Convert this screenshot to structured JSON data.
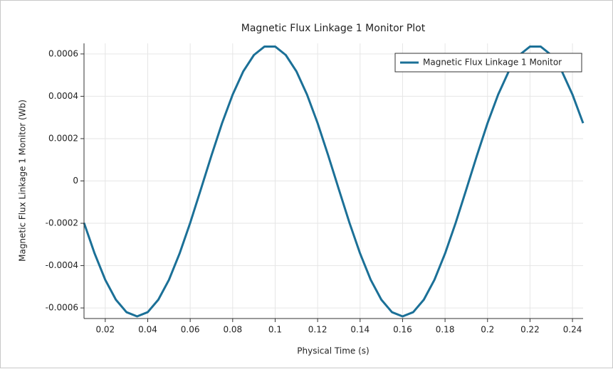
{
  "chart_data": {
    "type": "line",
    "title": "Magnetic Flux Linkage 1 Monitor Plot",
    "xlabel": "Physical Time (s)",
    "ylabel": "Magnetic Flux Linkage 1 Monitor (Wb)",
    "x": [
      0.01,
      0.015,
      0.02,
      0.025,
      0.03,
      0.035,
      0.04,
      0.045,
      0.05,
      0.055,
      0.06,
      0.065,
      0.07,
      0.075,
      0.08,
      0.085,
      0.09,
      0.095,
      0.1,
      0.105,
      0.11,
      0.115,
      0.12,
      0.125,
      0.13,
      0.135,
      0.14,
      0.145,
      0.15,
      0.155,
      0.16,
      0.165,
      0.17,
      0.175,
      0.18,
      0.185,
      0.19,
      0.195,
      0.2,
      0.205,
      0.21,
      0.215,
      0.22,
      0.225,
      0.23,
      0.235,
      0.24,
      0.245
    ],
    "series": [
      {
        "name": "Magnetic Flux Linkage 1 Monitor",
        "color": "#1b7097",
        "values": [
          -0.000198,
          -0.000343,
          -0.000467,
          -0.000561,
          -0.00062,
          -0.00064,
          -0.00062,
          -0.000561,
          -0.000467,
          -0.000343,
          -0.000198,
          -4e-05,
          0.00012,
          0.000273,
          0.000408,
          0.000518,
          0.000595,
          0.000635,
          0.000635,
          0.000595,
          0.000518,
          0.000408,
          0.000273,
          0.00012,
          -4e-05,
          -0.000198,
          -0.000343,
          -0.000467,
          -0.000561,
          -0.00062,
          -0.00064,
          -0.00062,
          -0.000561,
          -0.000467,
          -0.000343,
          -0.000198,
          -4e-05,
          0.00012,
          0.000273,
          0.000408,
          0.000518,
          0.000595,
          0.000635,
          0.000635,
          0.000595,
          0.000518,
          0.000408,
          0.000273
        ]
      }
    ],
    "xlim": [
      0.01,
      0.245
    ],
    "ylim": [
      -0.00065,
      0.00065
    ],
    "xticks": [
      0.02,
      0.04,
      0.06,
      0.08,
      0.1,
      0.12,
      0.14,
      0.16,
      0.18,
      0.2,
      0.22,
      0.24
    ],
    "yticks": [
      -0.0006,
      -0.0004,
      -0.0002,
      0,
      0.0002,
      0.0004,
      0.0006
    ],
    "grid": true,
    "legend": "upper right"
  }
}
